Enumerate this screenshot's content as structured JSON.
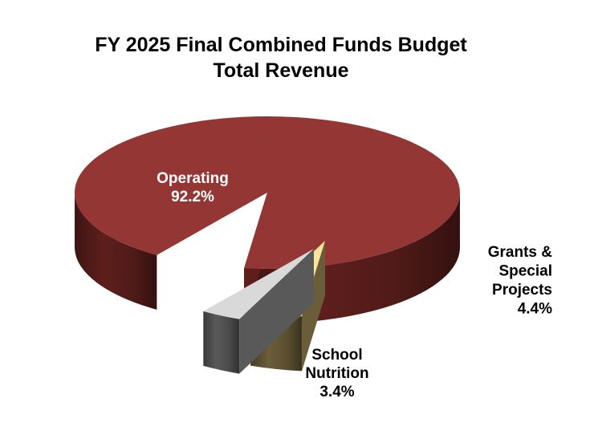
{
  "chart_data": {
    "type": "pie",
    "title": "FY 2025 Final Combined Funds Budget",
    "subtitle": "Total Revenue",
    "slices": [
      {
        "name": "Operating",
        "label_lines": [
          "Operating"
        ],
        "percent_label": "92.2%",
        "value": 92.2,
        "color": "#943634",
        "side_color": "#5e1f1c",
        "label_color": "#ffffff"
      },
      {
        "name": "Grants & Special Projects",
        "label_lines": [
          "Grants &",
          "Special",
          "Projects"
        ],
        "percent_label": "4.4%",
        "value": 4.4,
        "color": "#fbe39b",
        "side_color": "#6b5d39",
        "label_color": "#000000"
      },
      {
        "name": "School Nutrition",
        "label_lines": [
          "School",
          "Nutrition"
        ],
        "percent_label": "3.4%",
        "value": 3.4,
        "color": "#d9d9d9",
        "side_color": "#595959",
        "label_color": "#000000"
      }
    ],
    "legend": "none"
  }
}
